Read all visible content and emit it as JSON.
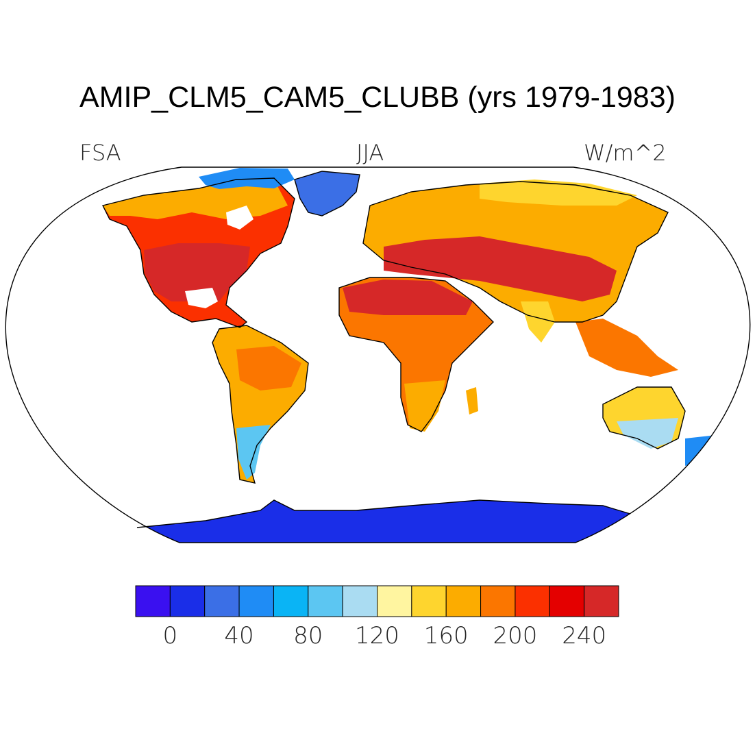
{
  "title": "AMIP_CLM5_CAM5_CLUBB (yrs 1979-1983)",
  "variable": "FSA",
  "season": "JJA",
  "units": "W/m^2",
  "colorbar": {
    "colors": [
      "#3a10f0",
      "#1a2ee8",
      "#3b6fe6",
      "#1f8cf5",
      "#0ab4f5",
      "#5cc6f2",
      "#aadcf2",
      "#fff5a0",
      "#fed52e",
      "#fcac00",
      "#fb7600",
      "#fb3000",
      "#e40000",
      "#d62828"
    ],
    "tick_labels": [
      "0",
      "40",
      "80",
      "120",
      "160",
      "200",
      "240"
    ]
  },
  "map": {
    "projection": "robinson",
    "ocean_color": "#ffffff",
    "coastline_color": "#000000"
  }
}
